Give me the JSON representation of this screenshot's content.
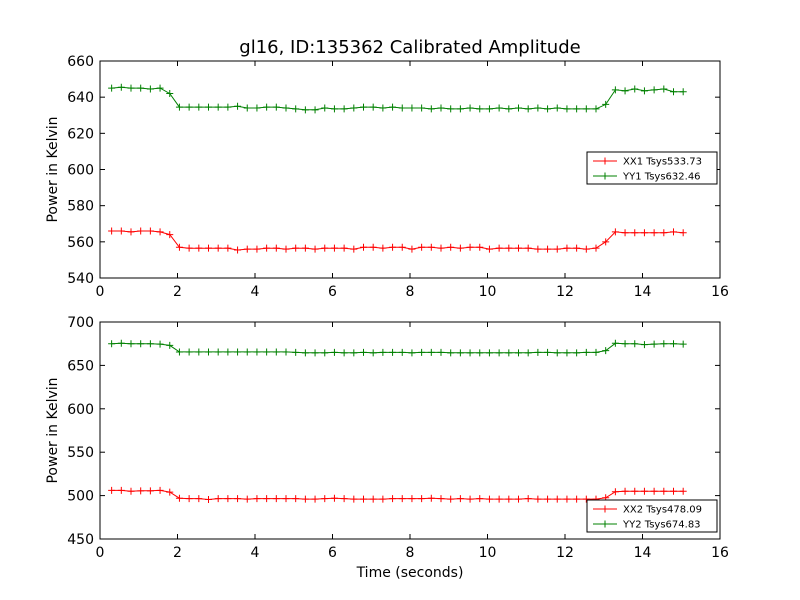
{
  "chart_data": [
    {
      "type": "line",
      "title": "gl16, ID:135362 Calibrated Amplitude",
      "xlabel": "",
      "ylabel": "Power in Kelvin",
      "xlim": [
        0,
        16
      ],
      "ylim": [
        540,
        660
      ],
      "xticks": [
        0,
        2,
        4,
        6,
        8,
        10,
        12,
        14,
        16
      ],
      "yticks": [
        540,
        560,
        580,
        600,
        620,
        640,
        660
      ],
      "legend_position": "center-right",
      "grid": false,
      "series": [
        {
          "name": "XX1 Tsys533.73",
          "color": "#ff0000",
          "x": [
            0.3,
            0.55,
            0.8,
            1.05,
            1.3,
            1.55,
            1.8,
            2.05,
            2.3,
            2.55,
            2.8,
            3.05,
            3.3,
            3.55,
            3.8,
            4.05,
            4.3,
            4.55,
            4.8,
            5.05,
            5.3,
            5.55,
            5.8,
            6.05,
            6.3,
            6.55,
            6.8,
            7.05,
            7.3,
            7.55,
            7.8,
            8.05,
            8.3,
            8.55,
            8.8,
            9.05,
            9.3,
            9.55,
            9.8,
            10.05,
            10.3,
            10.55,
            10.8,
            11.05,
            11.3,
            11.55,
            11.8,
            12.05,
            12.3,
            12.55,
            12.8,
            13.05,
            13.3,
            13.55,
            13.8,
            14.05,
            14.3,
            14.55,
            14.8,
            15.05
          ],
          "values": [
            566,
            566,
            565.5,
            566,
            566,
            565.5,
            564,
            557,
            556.5,
            556.5,
            556.5,
            556.5,
            556.5,
            555.5,
            556,
            556,
            556.5,
            556.5,
            556,
            556.5,
            556.5,
            556,
            556.5,
            556.5,
            556.5,
            556,
            557,
            557,
            556.5,
            557,
            557,
            556,
            557,
            557,
            556.5,
            557,
            556.5,
            557,
            557,
            556,
            556.5,
            556.5,
            556.5,
            556.5,
            556,
            556,
            556,
            556.5,
            556.5,
            556,
            556.5,
            560,
            565.5,
            565,
            565,
            565,
            565,
            565,
            565.5,
            565
          ]
        },
        {
          "name": "YY1 Tsys632.46",
          "color": "#008000",
          "x": [
            0.3,
            0.55,
            0.8,
            1.05,
            1.3,
            1.55,
            1.8,
            2.05,
            2.3,
            2.55,
            2.8,
            3.05,
            3.3,
            3.55,
            3.8,
            4.05,
            4.3,
            4.55,
            4.8,
            5.05,
            5.3,
            5.55,
            5.8,
            6.05,
            6.3,
            6.55,
            6.8,
            7.05,
            7.3,
            7.55,
            7.8,
            8.05,
            8.3,
            8.55,
            8.8,
            9.05,
            9.3,
            9.55,
            9.8,
            10.05,
            10.3,
            10.55,
            10.8,
            11.05,
            11.3,
            11.55,
            11.8,
            12.05,
            12.3,
            12.55,
            12.8,
            13.05,
            13.3,
            13.55,
            13.8,
            14.05,
            14.3,
            14.55,
            14.8,
            15.05
          ],
          "values": [
            645,
            645.5,
            645,
            645,
            644.5,
            645,
            642,
            634.5,
            634.5,
            634.5,
            634.5,
            634.5,
            634.5,
            635,
            634,
            634,
            634.5,
            634.5,
            634,
            633.5,
            633,
            633,
            634,
            633.5,
            633.5,
            634,
            634.5,
            634.5,
            634,
            634.5,
            634,
            634,
            634,
            633.5,
            634,
            633.5,
            633.5,
            634,
            633.5,
            633.5,
            634,
            633.5,
            634,
            633.5,
            634,
            633.5,
            634,
            633.5,
            633.5,
            633.5,
            633.5,
            636,
            644,
            643.5,
            644.5,
            643.5,
            644,
            644.5,
            643,
            643
          ]
        }
      ]
    },
    {
      "type": "line",
      "title": "",
      "xlabel": "Time (seconds)",
      "ylabel": "Power in Kelvin",
      "xlim": [
        0,
        16
      ],
      "ylim": [
        450,
        700
      ],
      "xticks": [
        0,
        2,
        4,
        6,
        8,
        10,
        12,
        14,
        16
      ],
      "yticks": [
        450,
        500,
        550,
        600,
        650,
        700
      ],
      "legend_position": "lower-right",
      "grid": false,
      "series": [
        {
          "name": "XX2 Tsys478.09",
          "color": "#ff0000",
          "x": [
            0.3,
            0.55,
            0.8,
            1.05,
            1.3,
            1.55,
            1.8,
            2.05,
            2.3,
            2.55,
            2.8,
            3.05,
            3.3,
            3.55,
            3.8,
            4.05,
            4.3,
            4.55,
            4.8,
            5.05,
            5.3,
            5.55,
            5.8,
            6.05,
            6.3,
            6.55,
            6.8,
            7.05,
            7.3,
            7.55,
            7.8,
            8.05,
            8.3,
            8.55,
            8.8,
            9.05,
            9.3,
            9.55,
            9.8,
            10.05,
            10.3,
            10.55,
            10.8,
            11.05,
            11.3,
            11.55,
            11.8,
            12.05,
            12.3,
            12.55,
            12.8,
            13.05,
            13.3,
            13.55,
            13.8,
            14.05,
            14.3,
            14.55,
            14.8,
            15.05
          ],
          "values": [
            506,
            506,
            505,
            505.5,
            505.5,
            506,
            504,
            497,
            496.5,
            496.5,
            495.5,
            496.5,
            496.5,
            496.5,
            496,
            496.5,
            496.5,
            496.5,
            496.5,
            496.5,
            496,
            496,
            496.5,
            497,
            496.5,
            496,
            496,
            496,
            496,
            496.5,
            496.5,
            496.5,
            496.5,
            497,
            496.5,
            496,
            496.5,
            496,
            496.5,
            496,
            496,
            496,
            496,
            496.5,
            496,
            496,
            496,
            496,
            496,
            496,
            496,
            497.5,
            504.5,
            505,
            505,
            505,
            505,
            505,
            505,
            505
          ]
        },
        {
          "name": "YY2 Tsys674.83",
          "color": "#008000",
          "x": [
            0.3,
            0.55,
            0.8,
            1.05,
            1.3,
            1.55,
            1.8,
            2.05,
            2.3,
            2.55,
            2.8,
            3.05,
            3.3,
            3.55,
            3.8,
            4.05,
            4.3,
            4.55,
            4.8,
            5.05,
            5.3,
            5.55,
            5.8,
            6.05,
            6.3,
            6.55,
            6.8,
            7.05,
            7.3,
            7.55,
            7.8,
            8.05,
            8.3,
            8.55,
            8.8,
            9.05,
            9.3,
            9.55,
            9.8,
            10.05,
            10.3,
            10.55,
            10.8,
            11.05,
            11.3,
            11.55,
            11.8,
            12.05,
            12.3,
            12.55,
            12.8,
            13.05,
            13.3,
            13.55,
            13.8,
            14.05,
            14.3,
            14.55,
            14.8,
            15.05
          ],
          "values": [
            675,
            675.5,
            675,
            675,
            675,
            674.5,
            673,
            665.5,
            665.5,
            665.5,
            665.5,
            665.5,
            665.5,
            665.5,
            665.5,
            665.5,
            665.5,
            665.5,
            665.5,
            665,
            664.5,
            664.5,
            664.5,
            665,
            664.5,
            664.5,
            665,
            664.5,
            665,
            665,
            665,
            664.5,
            665,
            665,
            665,
            664.5,
            664.5,
            664.5,
            664.5,
            664.5,
            664.5,
            664.5,
            664.5,
            664.5,
            665,
            665,
            664.5,
            664.5,
            664.5,
            665,
            665,
            667,
            675.5,
            675,
            675,
            674,
            674.5,
            675,
            675,
            674.5
          ]
        }
      ]
    }
  ]
}
